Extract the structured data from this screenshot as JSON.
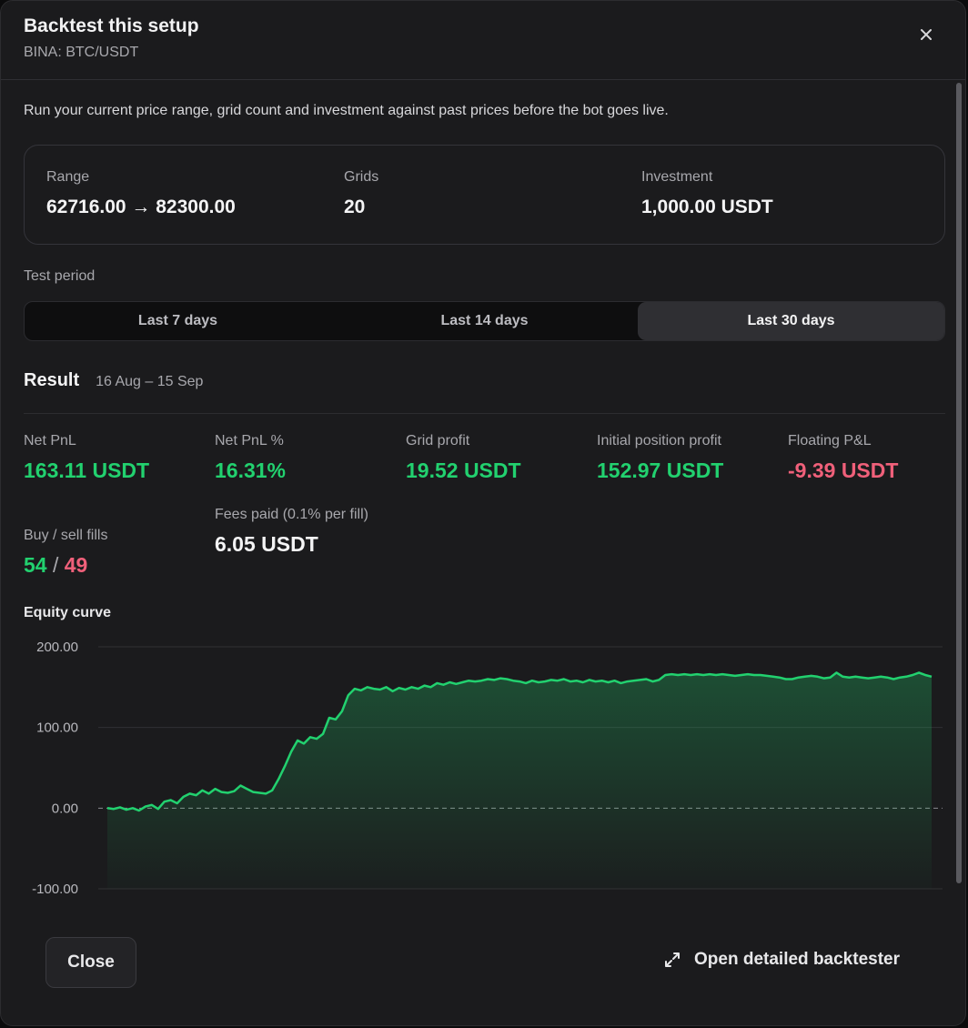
{
  "header": {
    "title": "Backtest this setup",
    "symbol": "BINA: BTC/USDT"
  },
  "intro": "Run your current price range, grid count and investment against past prices before the bot goes live.",
  "summary": {
    "range_label": "Range",
    "range_value": "62716.00 → 82300.00",
    "grids_label": "Grids",
    "grids_value": "20",
    "investment_label": "Investment",
    "investment_value": "1,000.00 USDT"
  },
  "test_period": {
    "label": "Test period",
    "options": [
      "Last 7 days",
      "Last 14 days",
      "Last 30 days"
    ],
    "selected": "Last 30 days"
  },
  "result": {
    "title": "Result",
    "dates": "16 Aug – 15 Sep",
    "stats": {
      "net_pnl_label": "Net PnL",
      "net_pnl_value": "163.11 USDT",
      "net_pnl_pct_label": "Net PnL %",
      "net_pnl_pct_value": "16.31%",
      "grid_profit_label": "Grid profit",
      "grid_profit_value": "19.52 USDT",
      "initial_position_label": "Initial position profit",
      "initial_position_value": "152.97 USDT",
      "floating_label": "Floating P&L",
      "floating_value": "-9.39 USDT",
      "fills_label": "Buy / sell fills",
      "buy_fills": "54",
      "sell_fills": "49",
      "fees_label": "Fees paid (0.1% per fill)",
      "fees_value": "6.05 USDT"
    },
    "colors": {
      "positive": "#22d16f",
      "negative": "#f0607a"
    }
  },
  "equity_label": "Equity curve",
  "chart_data": {
    "type": "area",
    "title": "",
    "xlabel": "",
    "ylabel": "",
    "ylim": [
      -100,
      200
    ],
    "y_ticks": [
      "200.00",
      "100.00",
      "0.00",
      "-100.00"
    ],
    "baseline": 0,
    "color": "#22d16f",
    "series": [
      {
        "values": [
          0,
          -1,
          1,
          -2,
          0,
          -3,
          2,
          4,
          -1,
          8,
          10,
          6,
          14,
          18,
          16,
          22,
          18,
          24,
          20,
          19,
          21,
          28,
          24,
          20,
          19,
          18,
          22,
          36,
          52,
          70,
          84,
          80,
          88,
          86,
          92,
          112,
          110,
          120,
          140,
          148,
          146,
          150,
          148,
          147,
          150,
          145,
          149,
          147,
          150,
          148,
          152,
          150,
          155,
          153,
          156,
          154,
          156,
          158,
          157,
          158,
          160,
          159,
          161,
          160,
          158,
          157,
          155,
          158,
          156,
          157,
          159,
          158,
          160,
          157,
          158,
          156,
          159,
          157,
          158,
          156,
          158,
          155,
          157,
          158,
          159,
          160,
          157,
          159,
          165,
          166,
          165,
          166,
          165,
          166,
          165,
          166,
          165,
          166,
          165,
          164,
          165,
          166,
          165,
          165,
          164,
          163,
          162,
          160,
          160,
          162,
          163,
          164,
          163,
          161,
          162,
          168,
          163,
          162,
          163,
          162,
          161,
          162,
          163,
          162,
          160,
          162,
          163,
          165,
          168,
          165,
          163
        ]
      }
    ],
    "grid": true,
    "legend": "none"
  },
  "footer": {
    "close_label": "Close",
    "open_label": "Open detailed backtester"
  }
}
